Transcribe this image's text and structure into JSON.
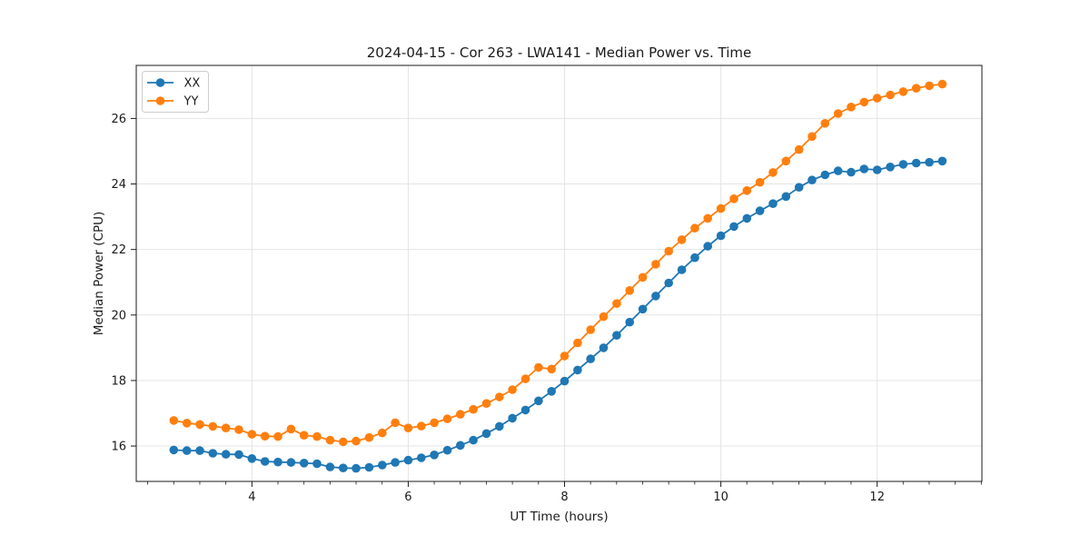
{
  "chart_data": {
    "type": "line",
    "title": "2024-04-15 - Cor 263 - LWA141 - Median Power vs. Time",
    "xlabel": "UT Time (hours)",
    "ylabel": "Median Power (CPU)",
    "xlim": [
      2.52,
      13.34
    ],
    "ylim": [
      14.92,
      27.62
    ],
    "xticks": [
      4,
      6,
      8,
      10,
      12
    ],
    "xtick_labels": [
      "4",
      "6",
      "8",
      "10",
      "12"
    ],
    "yticks": [
      16,
      18,
      20,
      22,
      24,
      26
    ],
    "ytick_labels": [
      "16",
      "18",
      "20",
      "22",
      "24",
      "26"
    ],
    "x_minor_step": 0.3333,
    "grid": true,
    "grid_axis": "both",
    "legend_position": "upper left",
    "marker": "o",
    "background": "#ffffff",
    "x": [
      3.0,
      3.167,
      3.333,
      3.5,
      3.667,
      3.833,
      4.0,
      4.167,
      4.333,
      4.5,
      4.667,
      4.833,
      5.0,
      5.167,
      5.333,
      5.5,
      5.667,
      5.833,
      6.0,
      6.167,
      6.333,
      6.5,
      6.667,
      6.833,
      7.0,
      7.167,
      7.333,
      7.5,
      7.667,
      7.833,
      8.0,
      8.167,
      8.333,
      8.5,
      8.667,
      8.833,
      9.0,
      9.167,
      9.333,
      9.5,
      9.667,
      9.833,
      10.0,
      10.167,
      10.333,
      10.5,
      10.667,
      10.833,
      11.0,
      11.167,
      11.333,
      11.5,
      11.667,
      11.833,
      12.0,
      12.167,
      12.333,
      12.5,
      12.667,
      12.833
    ],
    "series": [
      {
        "name": "XX",
        "color": "#1f77b4",
        "values": [
          15.88,
          15.86,
          15.86,
          15.78,
          15.75,
          15.74,
          15.62,
          15.53,
          15.51,
          15.5,
          15.48,
          15.46,
          15.36,
          15.33,
          15.32,
          15.35,
          15.42,
          15.5,
          15.57,
          15.64,
          15.73,
          15.87,
          16.02,
          16.18,
          16.38,
          16.6,
          16.85,
          17.1,
          17.38,
          17.67,
          17.98,
          18.32,
          18.66,
          19.0,
          19.38,
          19.78,
          20.18,
          20.58,
          20.98,
          21.38,
          21.75,
          22.1,
          22.42,
          22.7,
          22.95,
          23.18,
          23.4,
          23.62,
          23.9,
          24.12,
          24.28,
          24.4,
          24.36,
          24.46,
          24.43,
          24.52,
          24.6,
          24.64,
          24.66,
          24.7
        ]
      },
      {
        "name": "YY",
        "color": "#ff7f0e",
        "values": [
          16.78,
          16.7,
          16.66,
          16.6,
          16.55,
          16.5,
          16.36,
          16.3,
          16.29,
          16.52,
          16.33,
          16.29,
          16.18,
          16.13,
          16.15,
          16.26,
          16.4,
          16.71,
          16.55,
          16.61,
          16.71,
          16.83,
          16.97,
          17.12,
          17.3,
          17.5,
          17.72,
          18.05,
          18.4,
          18.35,
          18.75,
          19.15,
          19.55,
          19.95,
          20.35,
          20.75,
          21.15,
          21.55,
          21.95,
          22.3,
          22.65,
          22.95,
          23.25,
          23.55,
          23.8,
          24.05,
          24.35,
          24.7,
          25.05,
          25.45,
          25.85,
          26.15,
          26.35,
          26.5,
          26.62,
          26.72,
          26.82,
          26.92,
          27.0,
          27.05
        ]
      }
    ]
  }
}
